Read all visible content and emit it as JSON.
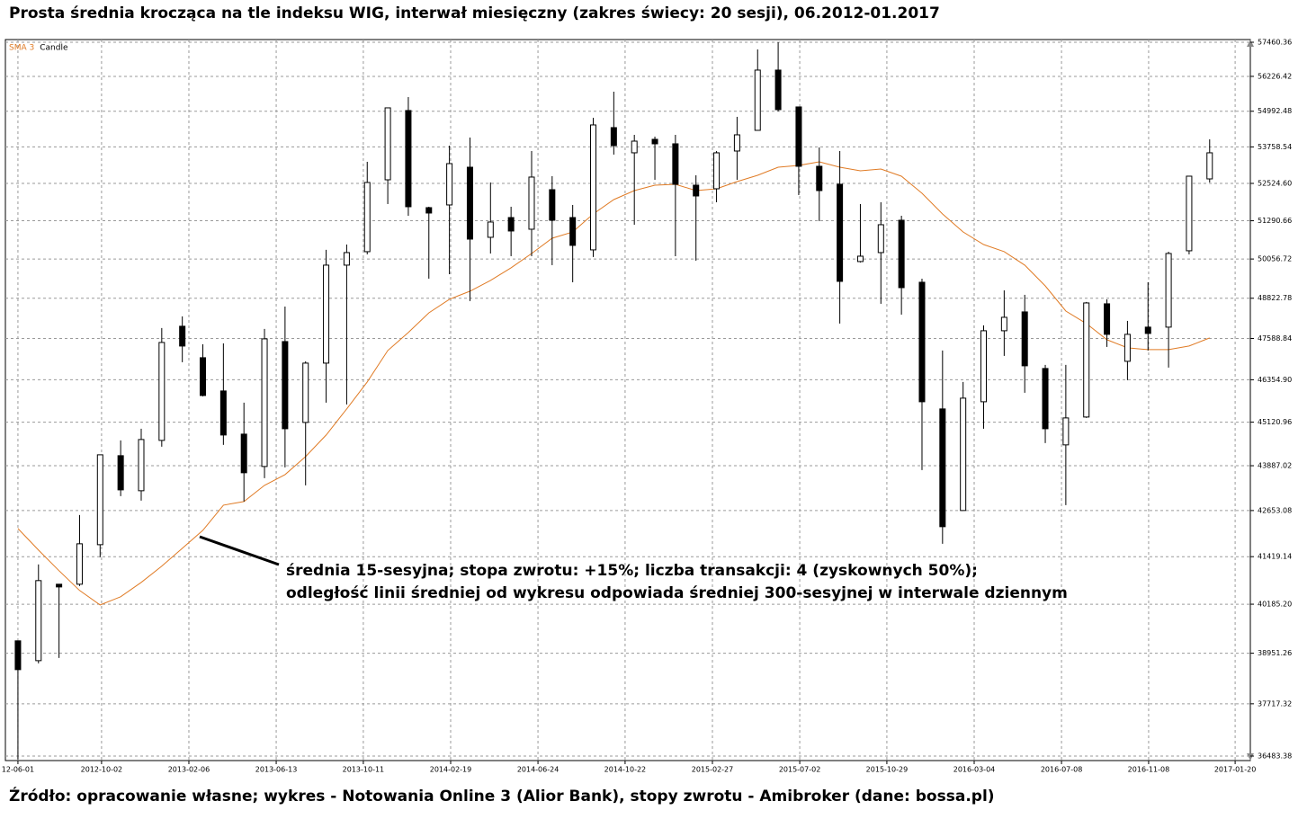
{
  "chart_data": {
    "type": "candlestick",
    "title": "Prosta średnia krocząca na tle indeksu WIG, interwał miesięczny (zakres świecy: 20 sesji), 06.2012-01.2017",
    "annotation": [
      "średnia 15-sesyjna; stopa zwrotu: +15%; liczba transakcji: 4 (zyskownych 50%);",
      "odległość linii średniej od wykresu odpowiada średniej 300-sesyjnej w interwale dziennym"
    ],
    "source": "Źródło: opracowanie własne; wykres - Notowania Online 3 (Alior Bank), stopy zwrotu - Amibroker (dane: bossa.pl)",
    "log_scale": true,
    "grid": true,
    "legend": "upper left",
    "xlim": [
      -0.61,
      59.98
    ],
    "xticks": [
      {
        "value": 0,
        "label": "12-06-01"
      },
      {
        "value": 4.07,
        "label": "2012-10-02"
      },
      {
        "value": 8.32,
        "label": "2013-02-06"
      },
      {
        "value": 12.57,
        "label": "2013-06-13"
      },
      {
        "value": 16.81,
        "label": "2013-10-11"
      },
      {
        "value": 21.06,
        "label": "2014-02-19"
      },
      {
        "value": 25.31,
        "label": "2014-06-24"
      },
      {
        "value": 29.55,
        "label": "2014-10-22"
      },
      {
        "value": 33.8,
        "label": "2015-02-27"
      },
      {
        "value": 38.05,
        "label": "2015-07-02"
      },
      {
        "value": 42.29,
        "label": "2015-10-29"
      },
      {
        "value": 46.54,
        "label": "2016-03-04"
      },
      {
        "value": 50.79,
        "label": "2016-07-08"
      },
      {
        "value": 55.03,
        "label": "2016-11-08"
      },
      {
        "value": 59.24,
        "label": "2017-01-20"
      }
    ],
    "ylim": [
      36379,
      57559
    ],
    "yticks": [
      57460.36,
      56226.42,
      54992.48,
      53758.54,
      {
        "value": 52524.6,
        "label": "52524.60"
      },
      51290.66,
      50056.72,
      48822.78,
      47588.84,
      {
        "value": 46354.9,
        "label": "46354.90"
      },
      45120.96,
      43887.02,
      42653.08,
      41419.14,
      {
        "value": 40185.2,
        "label": "40185.20"
      },
      38951.26,
      37717.32,
      36483.38
    ],
    "series": [
      {
        "name": "SMA 3",
        "color": "#e07b25",
        "type": "line",
        "values": [
          42168,
          41593,
          41051,
          40537,
          40167,
          40375,
          40746,
          41168,
          41641,
          42120,
          42800,
          42898,
          43342,
          43641,
          44143,
          44753,
          45502,
          46289,
          47225,
          47768,
          48372,
          48789,
          49041,
          49379,
          49776,
          50233,
          50724,
          50927,
          51513,
          51987,
          52285,
          52465,
          52495,
          52285,
          52345,
          52585,
          52796,
          53068,
          53129,
          53251,
          53068,
          52947,
          53008,
          52766,
          52195,
          51513,
          50927,
          50521,
          50291,
          49862,
          49209,
          48427,
          48042,
          47550,
          47306,
          47252,
          47252,
          47360,
          47605
        ]
      },
      {
        "name": "Candle",
        "color": "#000000",
        "type": "candlestick",
        "open": [
          39259,
          38767,
          40699,
          40699,
          41736,
          44168,
          43194,
          44600,
          47960,
          47009,
          46025,
          44778,
          43866,
          47495,
          45113,
          46848,
          49862,
          50291,
          52645,
          55017,
          51720,
          51809,
          53068,
          50753,
          51395,
          51015,
          52315,
          51395,
          50349,
          54422,
          53557,
          54018,
          53864,
          52465,
          52345,
          53618,
          54328,
          56451,
          55143,
          53099,
          52495,
          49976,
          50262,
          51307,
          49322,
          45502,
          42654,
          45710,
          47823,
          48400,
          46688,
          44473,
          45268,
          48650,
          46902,
          47933,
          47933,
          50320,
          52675
        ],
        "high": [
          39259,
          41215,
          40699,
          42532,
          44193,
          44600,
          44932,
          47905,
          48262,
          47414,
          47441,
          45684,
          47878,
          48566,
          46902,
          50349,
          50521,
          53251,
          55111,
          55491,
          51750,
          53803,
          54080,
          52555,
          51750,
          53618,
          52766,
          51809,
          54766,
          55681,
          54173,
          54111,
          54173,
          52796,
          53618,
          54797,
          57199,
          57460,
          55143,
          53741,
          53618,
          51839,
          51898,
          51454,
          49435,
          47225,
          46289,
          47987,
          49069,
          48929,
          46795,
          46795,
          48706,
          48789,
          48124,
          49322,
          50291,
          52766,
          54018
        ],
        "low": [
          36404,
          38700,
          38834,
          40653,
          41404,
          43046,
          42923,
          44422,
          46875,
          45867,
          44473,
          42898,
          43541,
          43841,
          43342,
          45684,
          45632,
          50205,
          51839,
          51454,
          49435,
          49577,
          48734,
          50233,
          50147,
          50147,
          49862,
          49322,
          50119,
          53496,
          51161,
          52645,
          50147,
          50004,
          51898,
          52645,
          54328,
          54985,
          52136,
          51278,
          48042,
          49947,
          48650,
          48317,
          43766,
          41760,
          42654,
          44932,
          47063,
          45972,
          44524,
          42800,
          45242,
          47333,
          46342,
          47225,
          46715,
          50205,
          52555
        ],
        "close": [
          38546,
          40793,
          40629,
          41760,
          44193,
          43218,
          44625,
          47468,
          47360,
          45893,
          44753,
          43691,
          47577,
          44932,
          46848,
          49862,
          50262,
          52555,
          55111,
          51750,
          51543,
          53190,
          50695,
          51249,
          50957,
          52736,
          51307,
          50493,
          54515,
          53803,
          53956,
          53864,
          52495,
          52106,
          53557,
          54173,
          56451,
          55048,
          53099,
          52285,
          49350,
          50147,
          51161,
          49153,
          45710,
          42217,
          45815,
          47823,
          48234,
          46768,
          44932,
          45242,
          48677,
          47714,
          47714,
          47741,
          50233,
          52766,
          53557
        ]
      }
    ]
  }
}
